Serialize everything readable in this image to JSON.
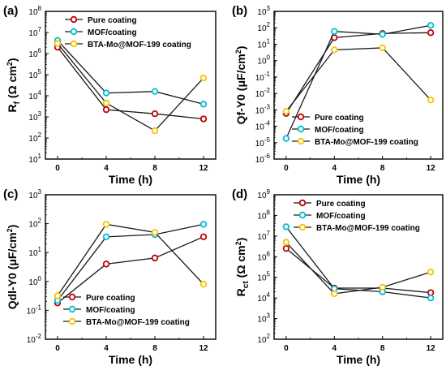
{
  "chart_data": [
    {
      "type": "line",
      "panel_label": "(a)",
      "xlabel": "Time (h)",
      "ylabel_parts": [
        "R",
        "f",
        " (Ω cm",
        "2",
        ")"
      ],
      "yscale": "log",
      "ylim": [
        1,
        8
      ],
      "y_ticks": [
        "10^1",
        "10^2",
        "10^3",
        "10^4",
        "10^5",
        "10^6",
        "10^7",
        "10^8"
      ],
      "x": [
        0,
        4,
        8,
        12
      ],
      "x_ticks": [
        "0",
        "4",
        "8",
        "12"
      ],
      "xlim": [
        -1,
        13
      ],
      "legend_position": "top-right",
      "series": [
        {
          "name": "Pure coating",
          "values": [
            2000000,
            2200,
            1400,
            800
          ]
        },
        {
          "name": "MOF/coating",
          "values": [
            4200000,
            13500,
            16000,
            4000
          ]
        },
        {
          "name": "BTA-Mo@MOF-199 coating",
          "values": [
            3000000,
            4500,
            220,
            70000
          ]
        }
      ]
    },
    {
      "type": "line",
      "panel_label": "(b)",
      "xlabel": "Time (h)",
      "ylabel_parts": [
        "Qf-Y0 (μF/cm",
        "2",
        ")"
      ],
      "yscale": "log",
      "ylim": [
        -6,
        3
      ],
      "y_ticks": [
        "10^-6",
        "10^-5",
        "10^-4",
        "10^-3",
        "10^-2",
        "10^-1",
        "10^0",
        "10^1",
        "10^2",
        "10^3"
      ],
      "x": [
        0,
        4,
        8,
        12
      ],
      "x_ticks": [
        "0",
        "4",
        "8",
        "12"
      ],
      "xlim": [
        -1,
        13
      ],
      "legend_position": "bottom-right",
      "series": [
        {
          "name": "Pure coating",
          "values": [
            0.0006,
            25,
            45,
            50
          ]
        },
        {
          "name": "MOF/coating",
          "values": [
            1.8e-05,
            60,
            40,
            140
          ]
        },
        {
          "name": "BTA-Mo@MOF-199 coating",
          "values": [
            0.0008,
            4.5,
            6,
            0.004
          ]
        }
      ]
    },
    {
      "type": "line",
      "panel_label": "(c)",
      "xlabel": "Time (h)",
      "ylabel_parts": [
        "Qdl-Y0 (μF/cm",
        "2",
        ")"
      ],
      "yscale": "log",
      "ylim": [
        -2,
        3
      ],
      "y_ticks": [
        "10^-2",
        "10^-1",
        "10^0",
        "10^1",
        "10^2",
        "10^3"
      ],
      "x": [
        0,
        4,
        8,
        12
      ],
      "x_ticks": [
        "0",
        "4",
        "8",
        "12"
      ],
      "xlim": [
        -1,
        13
      ],
      "legend_position": "bottom-right",
      "series": [
        {
          "name": "Pure coating",
          "values": [
            0.18,
            4,
            6.5,
            35
          ]
        },
        {
          "name": "MOF/coating",
          "values": [
            0.22,
            35,
            42,
            95
          ]
        },
        {
          "name": "BTA-Mo@MOF-199 coating",
          "values": [
            0.32,
            95,
            50,
            0.8
          ]
        }
      ]
    },
    {
      "type": "line",
      "panel_label": "(d)",
      "xlabel": "Time (h)",
      "ylabel_parts": [
        "R",
        "ct",
        " (Ω cm",
        "2",
        ")"
      ],
      "yscale": "log",
      "ylim": [
        2,
        9
      ],
      "y_ticks": [
        "10^2",
        "10^3",
        "10^4",
        "10^5",
        "10^6",
        "10^7",
        "10^8",
        "10^9"
      ],
      "x": [
        0,
        4,
        8,
        12
      ],
      "x_ticks": [
        "0",
        "4",
        "8",
        "12"
      ],
      "xlim": [
        -1,
        13
      ],
      "legend_position": "top-right",
      "series": [
        {
          "name": "Pure coating",
          "values": [
            2500000,
            30000,
            30000,
            18000
          ]
        },
        {
          "name": "MOF/coating",
          "values": [
            28000000,
            28000,
            20000,
            10000
          ]
        },
        {
          "name": "BTA-Mo@MOF-199 coating",
          "values": [
            5000000,
            16000,
            33000,
            180000
          ]
        }
      ]
    }
  ],
  "style": {
    "line_colors": [
      "#c00000",
      "#00bcd4",
      "#f5c400"
    ],
    "line_stroke": "#1a1a1a",
    "marker_fill": "#ffffff",
    "axis_color": "#000000"
  }
}
